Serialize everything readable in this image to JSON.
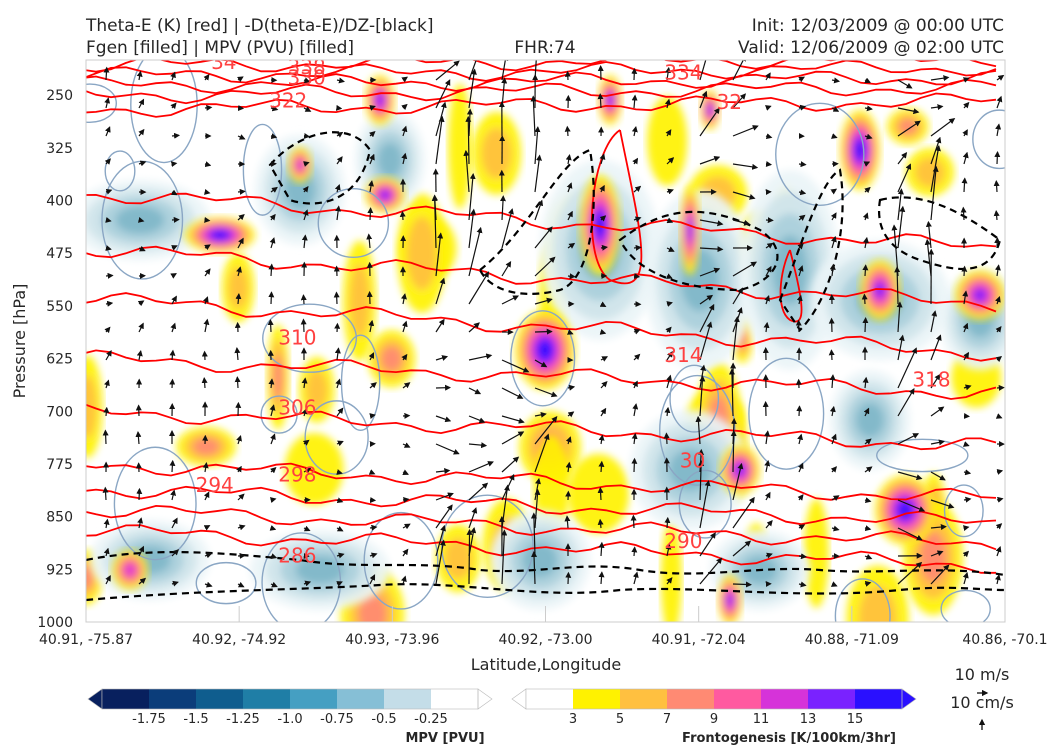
{
  "titles": {
    "left1": "Theta-E (K) [red] | -D(theta-E)/DZ-[black]",
    "left2": "Fgen [filled] | MPV (PVU) [filled]",
    "center": "FHR:74",
    "right1": "Init: 12/03/2009 @ 00:00 UTC",
    "right2": "Valid: 12/06/2009 @ 02:00 UTC"
  },
  "chart_data": {
    "type": "cross-section",
    "xlabel": "Latitude,Longitude",
    "ylabel": "Pressure [hPa]",
    "x_ticks": [
      "40.91, -75.87",
      "40.92, -74.92",
      "40.93, -73.96",
      "40.92, -73.00",
      "40.91, -72.04",
      "40.88, -71.09",
      "40.86, -70.1"
    ],
    "y_ticks": [
      250,
      325,
      400,
      475,
      550,
      625,
      700,
      775,
      850,
      925,
      1000
    ],
    "ylim": [
      200,
      1000
    ],
    "y_inverted": true,
    "theta_e_contour_labels": [
      {
        "text": "338",
        "x": 2.4,
        "p": 210
      },
      {
        "text": "330",
        "x": 2.4,
        "p": 225
      },
      {
        "text": "334",
        "x": 6.5,
        "p": 218
      },
      {
        "text": "322",
        "x": 2.2,
        "p": 258
      },
      {
        "text": "32",
        "x": 7.0,
        "p": 260
      },
      {
        "text": "34",
        "x": 1.5,
        "p": 203
      },
      {
        "text": "310",
        "x": 2.3,
        "p": 595
      },
      {
        "text": "314",
        "x": 6.5,
        "p": 620
      },
      {
        "text": "318",
        "x": 9.2,
        "p": 655
      },
      {
        "text": "306",
        "x": 2.3,
        "p": 695
      },
      {
        "text": "30",
        "x": 6.6,
        "p": 770
      },
      {
        "text": "298",
        "x": 2.3,
        "p": 790
      },
      {
        "text": "294",
        "x": 1.4,
        "p": 805
      },
      {
        "text": "290",
        "x": 6.5,
        "p": 885
      },
      {
        "text": "286",
        "x": 2.3,
        "p": 905
      }
    ],
    "theta_e_levels_hPa": [
      {
        "k": 338,
        "p": 208
      },
      {
        "k": 334,
        "p": 222
      },
      {
        "k": 330,
        "p": 236
      },
      {
        "k": 326,
        "p": 250
      },
      {
        "k": 322,
        "p": 270
      },
      {
        "k": 318,
        "p": 390
      },
      {
        "k": 314,
        "p": 470
      },
      {
        "k": 310,
        "p": 540
      },
      {
        "k": 306,
        "p": 625
      },
      {
        "k": 302,
        "p": 700
      },
      {
        "k": 298,
        "p": 775
      },
      {
        "k": 294,
        "p": 810
      },
      {
        "k": 290,
        "p": 840
      },
      {
        "k": 286,
        "p": 870
      }
    ],
    "mpv_colorbar": {
      "label": "MPV [PVU]",
      "ticks": [
        "-1.75",
        "-1.5",
        "-1.25",
        "-1.0",
        "-0.75",
        "-0.5",
        "-0.25"
      ],
      "colors": [
        "#08205e",
        "#0b3d7a",
        "#0f5d8e",
        "#1f7ea6",
        "#459fc2",
        "#86bfd6",
        "#c4dde8",
        "#ffffff"
      ]
    },
    "fgen_colorbar": {
      "label": "Frontogenesis [K/100km/3hr]",
      "ticks": [
        "3",
        "5",
        "7",
        "9",
        "11",
        "13",
        "15"
      ],
      "colors": [
        "#ffffff",
        "#fff200",
        "#ffc040",
        "#ff8a73",
        "#ff5aa0",
        "#d633d9",
        "#7a22ff",
        "#2a10ff"
      ]
    },
    "wind_key": {
      "line1": "10 m/s",
      "line2": "10 cm/s"
    }
  },
  "colors": {
    "theta_e": "#ff0000",
    "dtheta_dz": "#000000",
    "label": "#ff4040",
    "mpv_contour": "#8aa6c4"
  }
}
